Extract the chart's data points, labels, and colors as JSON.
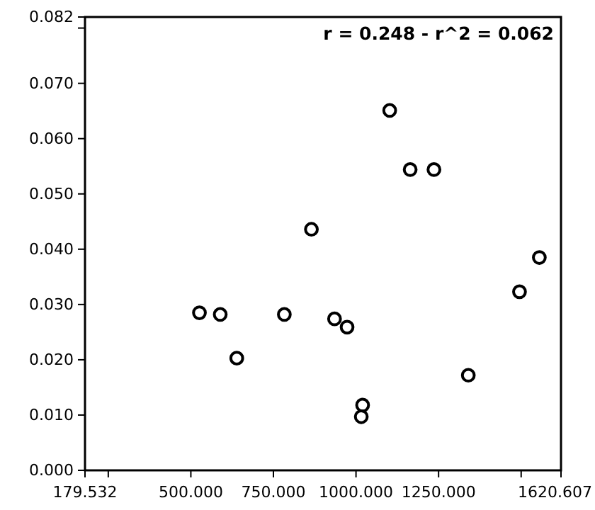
{
  "chart_data": {
    "type": "scatter",
    "annotations": [
      "r = 0.248 - r^2 = 0.062"
    ],
    "x": [
      526,
      589,
      639,
      783,
      865,
      935,
      973,
      1020,
      1016,
      1102,
      1164,
      1236,
      1340,
      1495,
      1555
    ],
    "values": [
      0.0285,
      0.0282,
      0.0203,
      0.0282,
      0.0436,
      0.0274,
      0.0259,
      0.0118,
      0.0097,
      0.0651,
      0.0544,
      0.0544,
      0.0172,
      0.0323,
      0.0385
    ],
    "color": "#000000",
    "marker": "circle",
    "grid": false,
    "xlim": [
      179.532,
      1620.607
    ],
    "xticks": [
      {
        "value": 179.532,
        "label": "179.532"
      },
      {
        "value": 250,
        "label": null
      },
      {
        "value": 500,
        "label": "500.000"
      },
      {
        "value": 750,
        "label": "750.000"
      },
      {
        "value": 1000,
        "label": "1000.000"
      },
      {
        "value": 1250,
        "label": "1250.000"
      },
      {
        "value": 1500,
        "label": null
      },
      {
        "value": 1620.607,
        "label": "1620.607"
      }
    ],
    "ylim": [
      0,
      0.082
    ],
    "yticks": [
      {
        "value": 0,
        "label": "0.000"
      },
      {
        "value": 0.01,
        "label": "0.010"
      },
      {
        "value": 0.02,
        "label": "0.020"
      },
      {
        "value": 0.03,
        "label": "0.030"
      },
      {
        "value": 0.04,
        "label": "0.040"
      },
      {
        "value": 0.05,
        "label": "0.050"
      },
      {
        "value": 0.06,
        "label": "0.060"
      },
      {
        "value": 0.07,
        "label": "0.070"
      },
      {
        "value": 0.08,
        "label": null
      },
      {
        "value": 0.082,
        "label": "0.082"
      }
    ]
  }
}
